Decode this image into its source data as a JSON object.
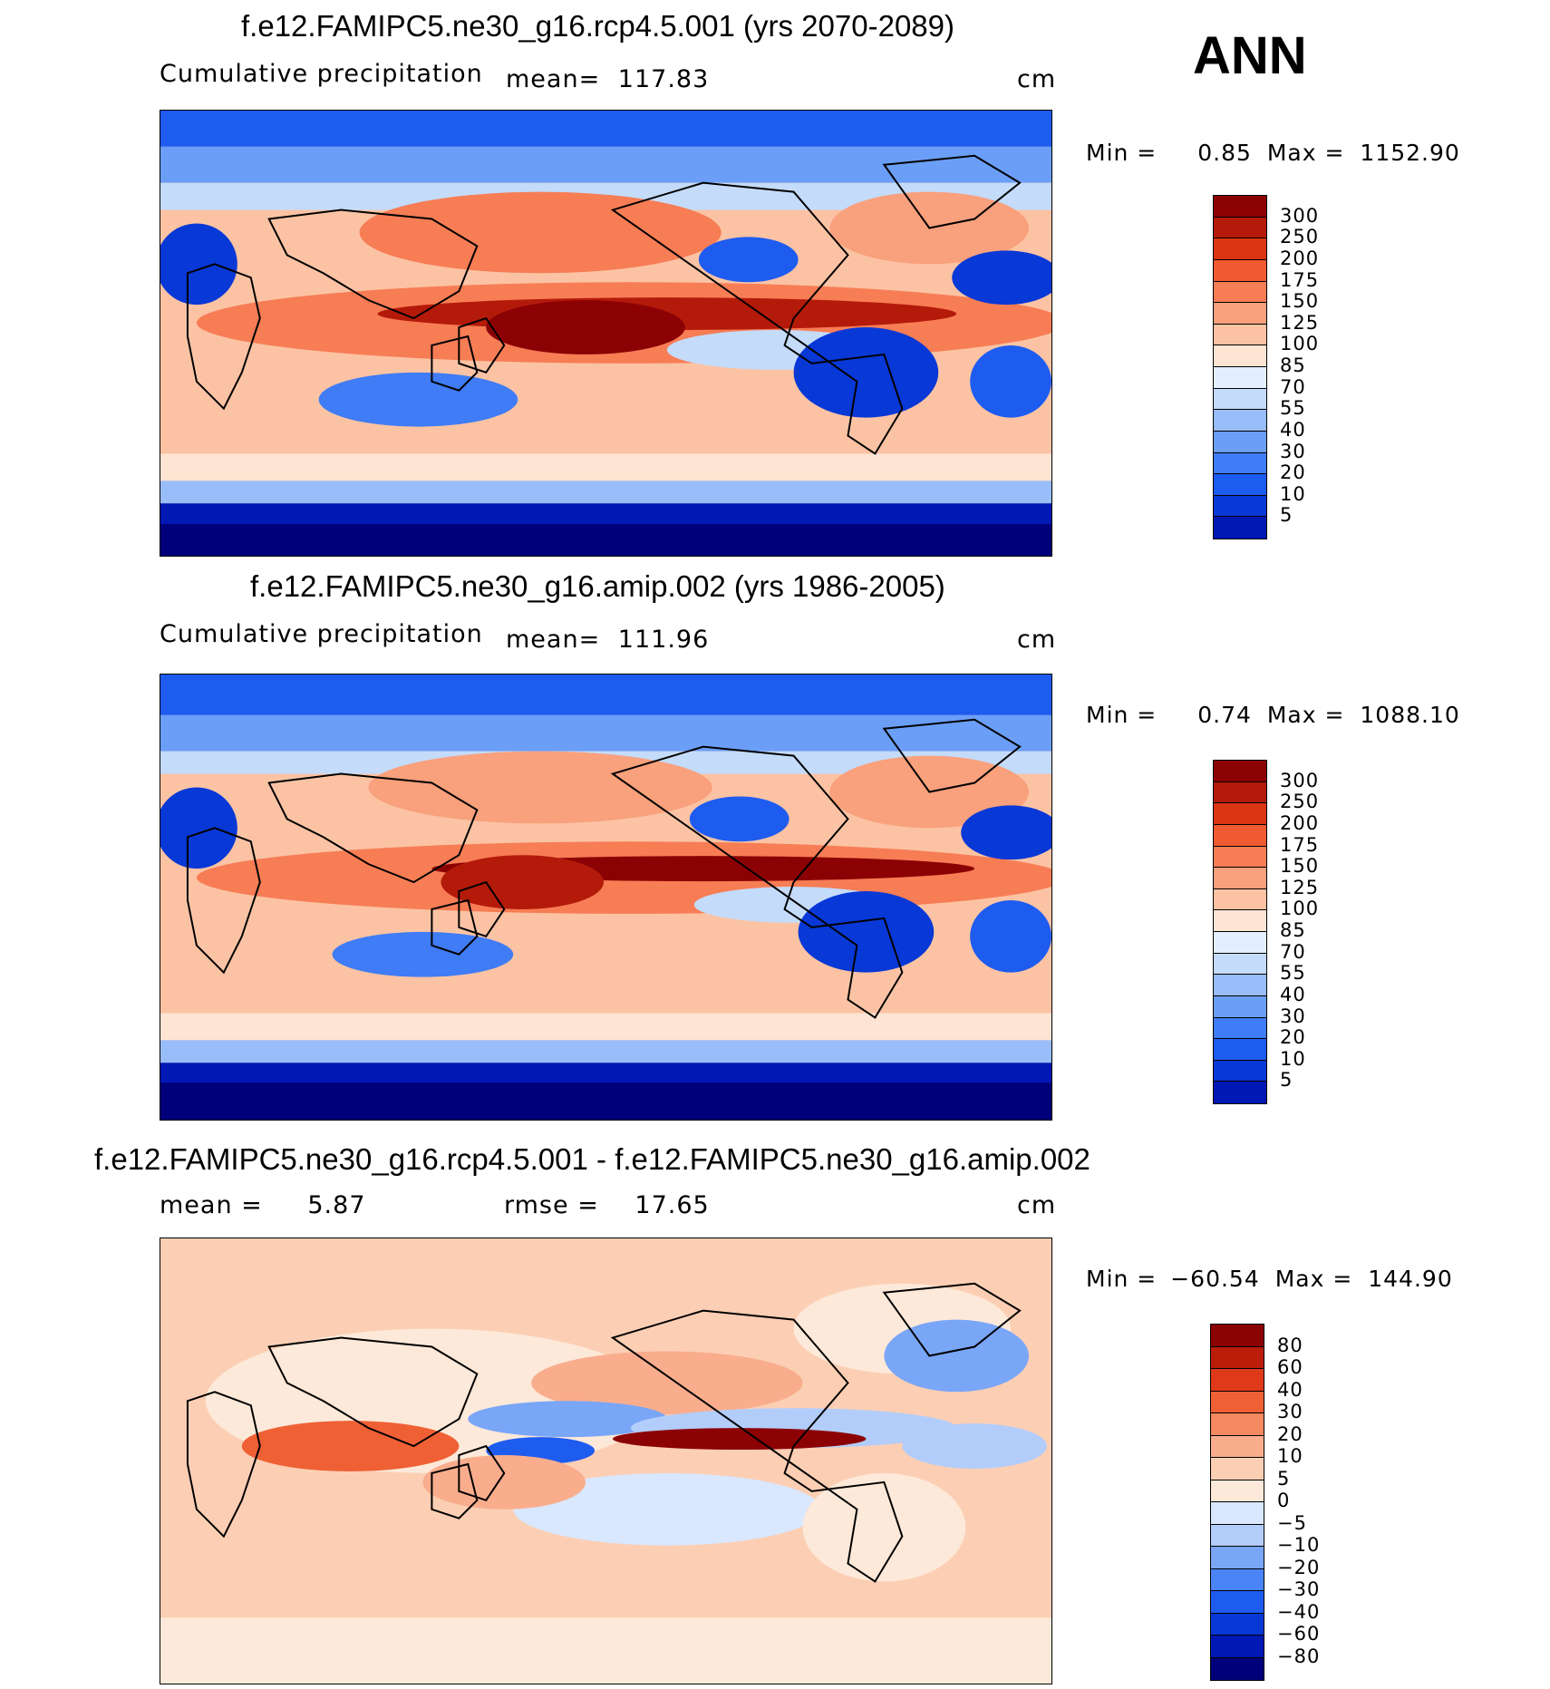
{
  "season": "ANN",
  "colors": {
    "abs_scale": [
      "#00007a",
      "#0018b4",
      "#0838d6",
      "#1e5cf0",
      "#3f7cf5",
      "#6b9ef7",
      "#98bdf8",
      "#c4dbfa",
      "#e3efff",
      "#fde4d3",
      "#fbc3a4",
      "#f9a07c",
      "#f77d55",
      "#f05a30",
      "#dc3513",
      "#b41a0a",
      "#8c0204"
    ],
    "diff_scale": [
      "#00007a",
      "#0018b4",
      "#0838d6",
      "#1e5cf0",
      "#4a84f7",
      "#7aa6f8",
      "#b3cdfa",
      "#d9e7ff",
      "#fde9d9",
      "#fccfb4",
      "#f9ad8d",
      "#f58960",
      "#ef6035",
      "#e0391a",
      "#bc1c0a",
      "#8c0204"
    ]
  },
  "panels": [
    {
      "title": "f.e12.FAMIPC5.ne30_g16.rcp4.5.001 (yrs 2070-2089)",
      "left_label": "Cumulative precipitation",
      "mean_label": "mean=",
      "mean_value": "117.83",
      "units": "cm",
      "min_label": "Min =",
      "min_value": "0.85",
      "max_label": "Max =",
      "max_value": "1152.90"
    },
    {
      "title": "f.e12.FAMIPC5.ne30_g16.amip.002 (yrs 1986-2005)",
      "left_label": "Cumulative precipitation",
      "mean_label": "mean=",
      "mean_value": "111.96",
      "units": "cm",
      "min_label": "Min =",
      "min_value": "0.74",
      "max_label": "Max =",
      "max_value": "1088.10"
    },
    {
      "title": "f.e12.FAMIPC5.ne30_g16.rcp4.5.001 - f.e12.FAMIPC5.ne30_g16.amip.002",
      "mean_label": "mean =",
      "mean_value": "5.87",
      "rmse_label": "rmse =",
      "rmse_value": "17.65",
      "units": "cm",
      "min_label": "Min =",
      "min_value": "−60.54",
      "max_label": "Max =",
      "max_value": "144.90"
    }
  ],
  "chart_data": [
    {
      "type": "heatmap",
      "title": "f.e12.FAMIPC5.ne30_g16.rcp4.5.001 (yrs 2070-2089)",
      "variable": "Cumulative precipitation",
      "units": "cm",
      "mean": 117.83,
      "min": 0.85,
      "max": 1152.9,
      "colorbar_levels": [
        "300",
        "250",
        "200",
        "175",
        "150",
        "125",
        "100",
        "85",
        "70",
        "55",
        "40",
        "30",
        "20",
        "10",
        "5"
      ]
    },
    {
      "type": "heatmap",
      "title": "f.e12.FAMIPC5.ne30_g16.amip.002 (yrs 1986-2005)",
      "variable": "Cumulative precipitation",
      "units": "cm",
      "mean": 111.96,
      "min": 0.74,
      "max": 1088.1,
      "colorbar_levels": [
        "300",
        "250",
        "200",
        "175",
        "150",
        "125",
        "100",
        "85",
        "70",
        "55",
        "40",
        "30",
        "20",
        "10",
        "5"
      ]
    },
    {
      "type": "heatmap",
      "title": "f.e12.FAMIPC5.ne30_g16.rcp4.5.001 - f.e12.FAMIPC5.ne30_g16.amip.002",
      "units": "cm",
      "mean": 5.87,
      "rmse": 17.65,
      "min": -60.54,
      "max": 144.9,
      "colorbar_levels": [
        "80",
        "60",
        "40",
        "30",
        "20",
        "10",
        "5",
        "0",
        "−5",
        "−10",
        "−20",
        "−30",
        "−40",
        "−60",
        "−80"
      ]
    }
  ]
}
